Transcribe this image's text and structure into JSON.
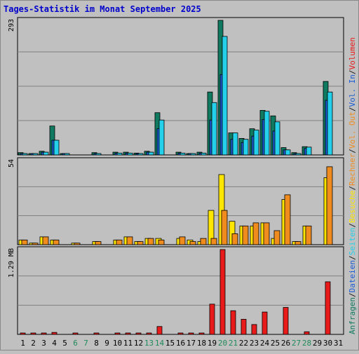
{
  "chart_data": {
    "type": "bar",
    "title": "Tages-Statistik im Monat September 2025",
    "days": [
      "1",
      "2",
      "3",
      "4",
      "5",
      "6",
      "7",
      "8",
      "9",
      "10",
      "11",
      "12",
      "13",
      "14",
      "15",
      "16",
      "17",
      "18",
      "19",
      "20",
      "21",
      "22",
      "23",
      "24",
      "25",
      "26",
      "27",
      "28",
      "29",
      "30",
      "31"
    ],
    "weekend_days": [
      "6",
      "7",
      "13",
      "14",
      "20",
      "21",
      "27",
      "28"
    ],
    "panels": [
      {
        "id": "top",
        "max_label": "293",
        "ymax": 293,
        "series": [
          {
            "name": "Anfragen",
            "color": "#0f7a5f",
            "values": [
              5,
              3,
              8,
              63,
              2,
              0,
              0,
              5,
              0,
              6,
              6,
              4,
              8,
              92,
              0,
              6,
              3,
              6,
              137,
              293,
              48,
              36,
              57,
              97,
              85,
              16,
              5,
              18,
              0,
              160,
              0
            ]
          },
          {
            "name": "Dateien",
            "color": "#1a5bd6",
            "values": [
              3,
              2,
              6,
              32,
              1,
              0,
              0,
              3,
              0,
              4,
              4,
              3,
              6,
              57,
              0,
              4,
              2,
              4,
              76,
              175,
              34,
              27,
              41,
              77,
              52,
              11,
              3,
              14,
              0,
              119,
              0
            ]
          },
          {
            "name": "Seiten",
            "color": "#25d0ea",
            "values": [
              3,
              2,
              6,
              32,
              1,
              0,
              0,
              3,
              0,
              4,
              4,
              3,
              6,
              76,
              0,
              4,
              2,
              4,
              114,
              258,
              48,
              34,
              54,
              95,
              72,
              11,
              3,
              17,
              0,
              137,
              0
            ]
          }
        ]
      },
      {
        "id": "middle",
        "max_label": "54",
        "ymax": 54,
        "series": [
          {
            "name": "Besuche",
            "color": "#ffe600",
            "values": [
              3,
              1,
              5,
              3,
              0,
              1,
              0,
              2,
              0,
              3,
              5,
              2,
              4,
              4,
              0,
              4,
              3,
              2,
              22,
              45,
              15,
              12,
              12,
              14,
              4,
              29,
              2,
              12,
              0,
              43,
              0
            ]
          },
          {
            "name": "Rechner",
            "color": "#f08c1e",
            "values": [
              3,
              1,
              5,
              3,
              0,
              1,
              0,
              2,
              0,
              3,
              5,
              2,
              4,
              3,
              0,
              5,
              2,
              4,
              4,
              22,
              7,
              12,
              14,
              14,
              9,
              32,
              2,
              12,
              0,
              50,
              0
            ]
          }
        ]
      },
      {
        "id": "bottom",
        "max_label": "1.29 MB",
        "ymax": 1.29,
        "series": [
          {
            "name": "Volumen",
            "color": "#e81a1a",
            "values": [
              0.02,
              0.02,
              0.02,
              0.03,
              0,
              0.02,
              0,
              0.02,
              0,
              0.02,
              0.02,
              0.02,
              0.02,
              0.12,
              0,
              0.02,
              0.02,
              0.02,
              0.46,
              1.29,
              0.36,
              0.23,
              0.15,
              0.34,
              0,
              0.41,
              0,
              0.04,
              0,
              0.8,
              0
            ]
          }
        ]
      }
    ],
    "right_legend": [
      {
        "text": "Anfragen",
        "color": "#0f7a5f"
      },
      {
        "text": "/",
        "color": "#1a1a1a"
      },
      {
        "text": "Dateien",
        "color": "#1a5bd6"
      },
      {
        "text": "/",
        "color": "#1a1a1a"
      },
      {
        "text": "Seiten",
        "color": "#25d0ea"
      },
      {
        "text": "/",
        "color": "#1a1a1a"
      },
      {
        "text": "Besuche",
        "color": "#ffe600"
      },
      {
        "text": "/",
        "color": "#1a1a1a"
      },
      {
        "text": "Rechner",
        "color": "#f08c1e"
      },
      {
        "text": "/",
        "color": "#1a1a1a"
      },
      {
        "text": "Vol. Out",
        "color": "#f08c1e"
      },
      {
        "text": "/",
        "color": "#1a1a1a"
      },
      {
        "text": "Vol. In",
        "color": "#1a5bd6"
      },
      {
        "text": "/",
        "color": "#1a1a1a"
      },
      {
        "text": "Volumen",
        "color": "#e81a1a"
      }
    ]
  }
}
